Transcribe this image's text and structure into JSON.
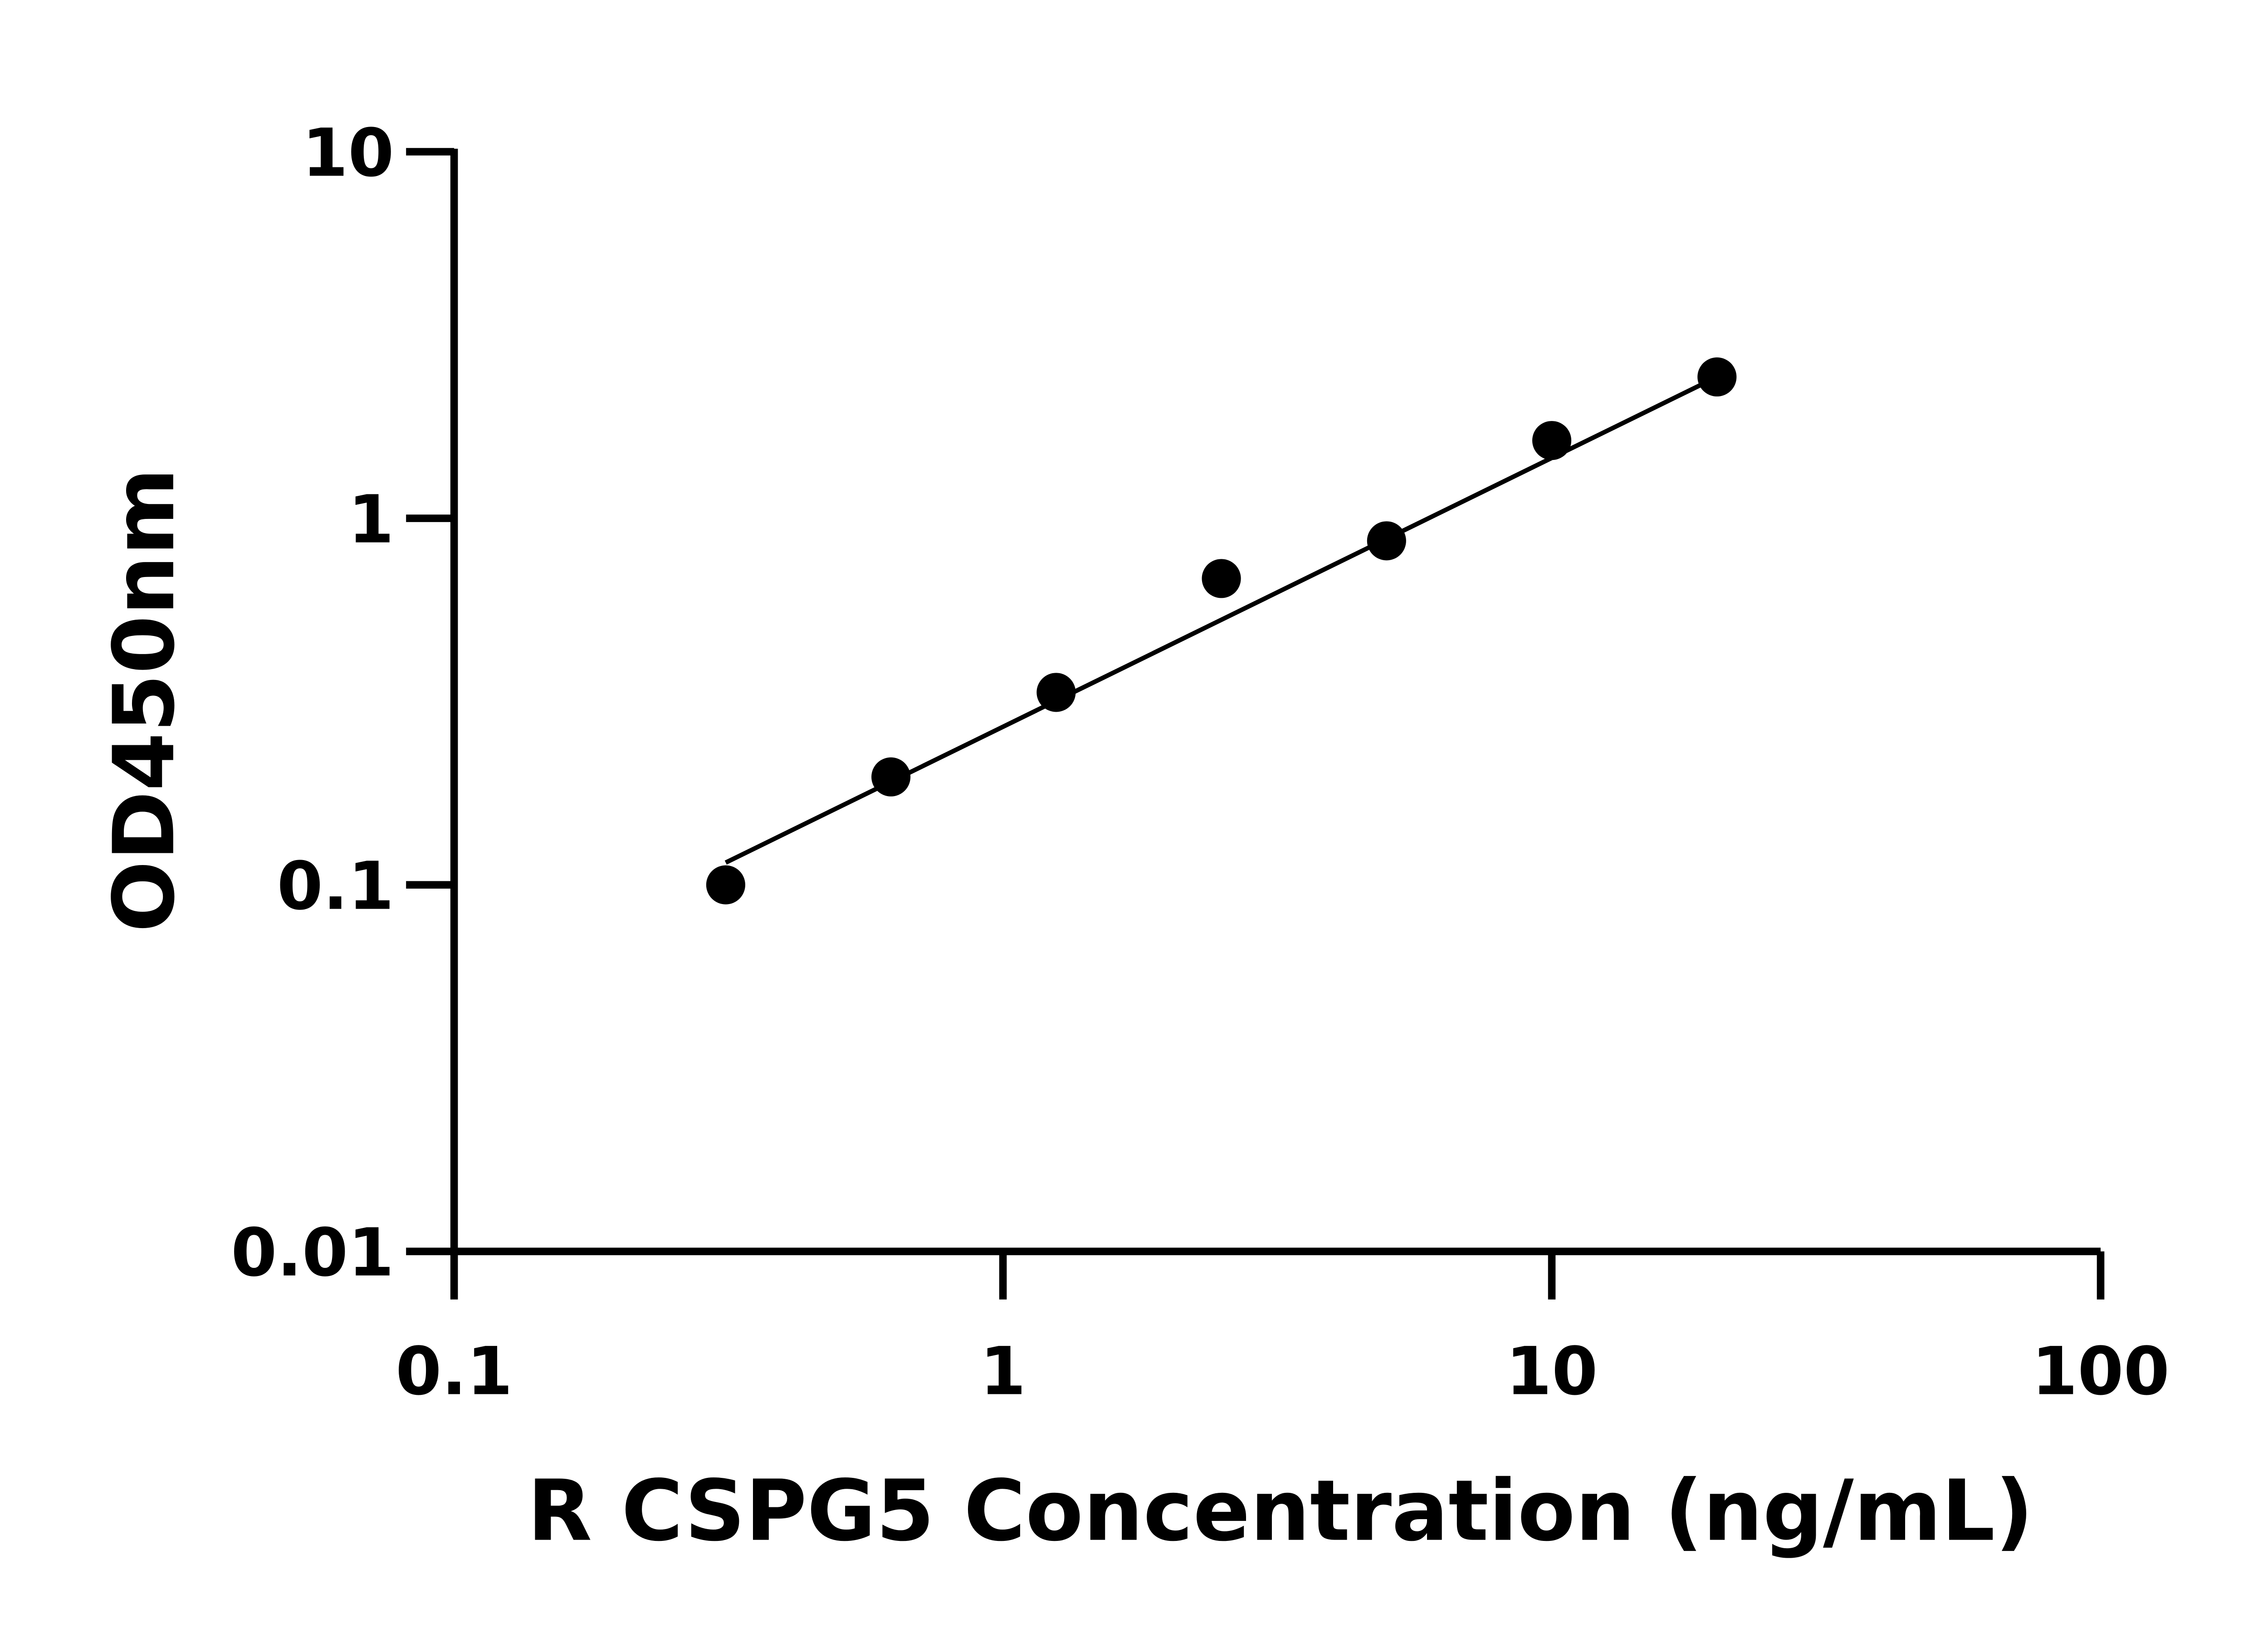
{
  "chart_data": {
    "type": "scatter",
    "title": "",
    "xlabel": "R CSPG5 Concentration (ng/mL)",
    "ylabel": "OD450nm",
    "x_scale": "log",
    "y_scale": "log",
    "xlim": [
      0.1,
      100
    ],
    "ylim": [
      0.01,
      10
    ],
    "x_ticks": [
      "0.1",
      "1",
      "10",
      "100"
    ],
    "y_ticks": [
      "0.01",
      "0.1",
      "1",
      "10"
    ],
    "grid": false,
    "legend": "none",
    "series": [
      {
        "x": [
          0.3125,
          0.625,
          1.25,
          2.5,
          5,
          10,
          20
        ],
        "y": [
          0.1,
          0.197,
          0.335,
          0.685,
          0.868,
          1.63,
          2.43
        ],
        "marker": "circle",
        "color": "#000000"
      }
    ],
    "fit_line": {
      "x": [
        0.3125,
        19
      ],
      "y": [
        0.115,
        2.34
      ],
      "color": "#000000"
    }
  }
}
